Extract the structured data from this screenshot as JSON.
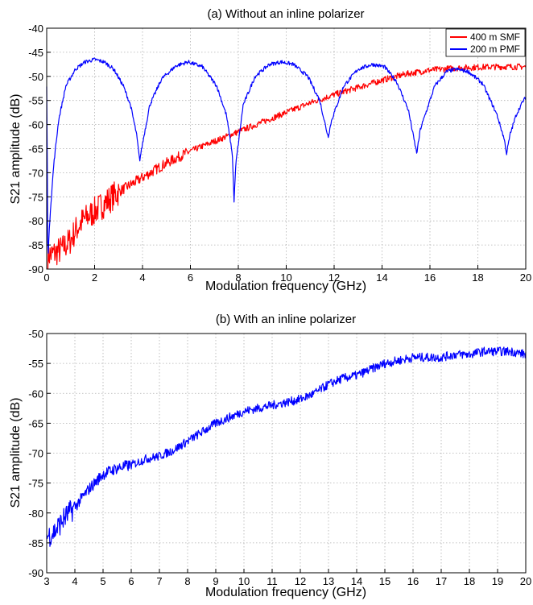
{
  "chart_data": [
    {
      "type": "line",
      "title": "(a) Without an inline polarizer",
      "xlabel": "Modulation frequency (GHz)",
      "ylabel": "S21 amplitude (dB)",
      "xlim": [
        0,
        20
      ],
      "ylim": [
        -90,
        -40
      ],
      "xticks": [
        "0",
        "2",
        "4",
        "6",
        "8",
        "10",
        "12",
        "14",
        "16",
        "18",
        "20"
      ],
      "yticks": [
        "-40",
        "-45",
        "-50",
        "-55",
        "-60",
        "-65",
        "-70",
        "-75",
        "-80",
        "-85",
        "-90"
      ],
      "grid": true,
      "legend": "top-right",
      "series": [
        {
          "name": "400 m SMF",
          "color": "#ff0000",
          "x": [
            0.05,
            0.2,
            0.4,
            0.6,
            0.8,
            1.0,
            1.2,
            1.5,
            2.0,
            2.5,
            3.0,
            3.5,
            4.0,
            5.0,
            6.0,
            7.0,
            8.0,
            9.0,
            10.0,
            11.0,
            12.0,
            13.0,
            14.0,
            15.0,
            16.0,
            17.0,
            18.0,
            19.0,
            20.0
          ],
          "y": [
            -87,
            -87,
            -86.5,
            -86,
            -85,
            -84,
            -82,
            -80,
            -78,
            -76,
            -74,
            -72.5,
            -71,
            -68,
            -65.5,
            -63.5,
            -61.5,
            -59.5,
            -57.5,
            -55.5,
            -53.8,
            -52.3,
            -50.8,
            -49.5,
            -48.7,
            -48.3,
            -48.1,
            -48.0,
            -48.0
          ]
        },
        {
          "name": "200 m PMF",
          "color": "#0000ff",
          "x": [
            0.0,
            0.05,
            0.15,
            0.3,
            0.5,
            0.8,
            1.2,
            1.6,
            2.0,
            2.4,
            2.8,
            3.2,
            3.5,
            3.75,
            3.88,
            4.0,
            4.3,
            4.8,
            5.4,
            5.9,
            6.5,
            7.1,
            7.5,
            7.75,
            7.82,
            7.9,
            8.2,
            8.7,
            9.3,
            9.8,
            10.3,
            10.9,
            11.4,
            11.65,
            11.75,
            11.9,
            12.4,
            13.0,
            13.6,
            14.1,
            14.6,
            15.1,
            15.35,
            15.45,
            15.6,
            16.2,
            16.7,
            17.1,
            17.6,
            18.2,
            18.8,
            19.1,
            19.2,
            19.35,
            19.6,
            19.9,
            20.0
          ],
          "y": [
            -52,
            -88,
            -78,
            -68,
            -59,
            -52,
            -48.5,
            -47,
            -46.5,
            -47,
            -48.5,
            -52,
            -56,
            -62,
            -67.5,
            -64,
            -56,
            -50.5,
            -47.8,
            -47,
            -48,
            -52,
            -58,
            -66,
            -76,
            -68,
            -56,
            -50,
            -47.5,
            -47,
            -47.5,
            -50,
            -55,
            -60.5,
            -62.5,
            -59,
            -52,
            -48.5,
            -47.5,
            -48,
            -51,
            -57,
            -63.5,
            -66,
            -61,
            -52,
            -49,
            -48.5,
            -49,
            -51.5,
            -58,
            -63,
            -66,
            -62,
            -58,
            -55,
            -54.5
          ]
        }
      ]
    },
    {
      "type": "line",
      "title": "(b) With an inline polarizer",
      "xlabel": "Modulation frequency (GHz)",
      "ylabel": "S21 amplitude (dB)",
      "xlim": [
        3,
        20
      ],
      "ylim": [
        -90,
        -50
      ],
      "xticks": [
        "3",
        "4",
        "5",
        "6",
        "7",
        "8",
        "9",
        "10",
        "11",
        "12",
        "13",
        "14",
        "15",
        "16",
        "17",
        "18",
        "19",
        "20"
      ],
      "yticks": [
        "-50",
        "-55",
        "-60",
        "-65",
        "-70",
        "-75",
        "-80",
        "-85",
        "-90"
      ],
      "grid": true,
      "series": [
        {
          "color": "#0000ff",
          "x": [
            3.0,
            3.3,
            3.6,
            4.0,
            4.5,
            5.0,
            5.5,
            6.0,
            6.5,
            7.0,
            7.5,
            8.0,
            8.5,
            9.0,
            9.5,
            10.0,
            10.5,
            11.0,
            11.5,
            12.0,
            12.5,
            13.0,
            13.5,
            14.0,
            14.5,
            15.0,
            15.5,
            16.0,
            16.5,
            17.0,
            17.5,
            18.0,
            18.5,
            19.0,
            19.5,
            20.0
          ],
          "y": [
            -84,
            -83,
            -81,
            -79,
            -76,
            -73.5,
            -72.5,
            -72,
            -71,
            -70.5,
            -69.5,
            -68,
            -66.5,
            -65,
            -64,
            -63,
            -62.5,
            -62,
            -61.5,
            -61,
            -60,
            -58.5,
            -57.5,
            -57,
            -56,
            -55,
            -54.5,
            -54,
            -54,
            -54,
            -53.5,
            -53.5,
            -53,
            -53,
            -53,
            -53.5
          ]
        }
      ]
    }
  ]
}
